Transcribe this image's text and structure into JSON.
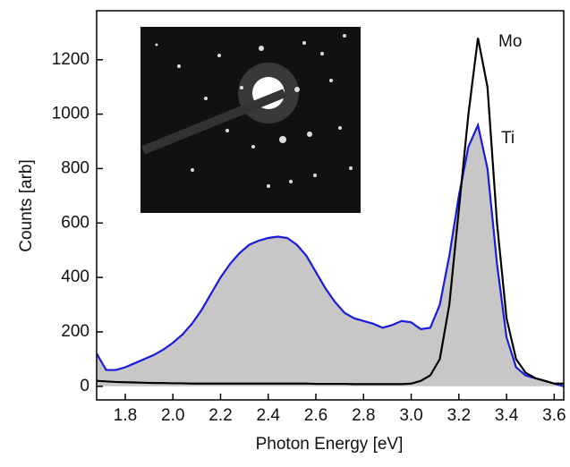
{
  "chart_data": {
    "type": "line",
    "xlabel": "Photon Energy [eV]",
    "ylabel": "Counts [arb]",
    "x": [
      1.68,
      1.72,
      1.76,
      1.8,
      1.84,
      1.88,
      1.92,
      1.96,
      2.0,
      2.04,
      2.08,
      2.12,
      2.16,
      2.2,
      2.24,
      2.28,
      2.32,
      2.36,
      2.4,
      2.44,
      2.48,
      2.52,
      2.56,
      2.6,
      2.64,
      2.68,
      2.72,
      2.76,
      2.8,
      2.84,
      2.88,
      2.92,
      2.96,
      3.0,
      3.04,
      3.08,
      3.12,
      3.16,
      3.2,
      3.24,
      3.28,
      3.32,
      3.36,
      3.4,
      3.44,
      3.48,
      3.52,
      3.56,
      3.6,
      3.64
    ],
    "series": [
      {
        "name": "Ti",
        "color": "#1a1adc",
        "fill": "#c8c6c6",
        "values": [
          120,
          60,
          60,
          70,
          85,
          100,
          115,
          135,
          160,
          190,
          230,
          280,
          340,
          400,
          450,
          490,
          520,
          535,
          545,
          550,
          545,
          520,
          480,
          420,
          360,
          310,
          270,
          250,
          240,
          230,
          215,
          225,
          240,
          235,
          210,
          215,
          300,
          480,
          700,
          880,
          960,
          800,
          450,
          180,
          70,
          40,
          30,
          20,
          10,
          0
        ]
      },
      {
        "name": "Mo",
        "color": "#000000",
        "values": [
          20,
          18,
          16,
          15,
          14,
          13,
          12,
          12,
          11,
          11,
          10,
          10,
          10,
          10,
          10,
          10,
          10,
          10,
          10,
          10,
          10,
          10,
          10,
          9,
          9,
          9,
          9,
          8,
          8,
          8,
          8,
          8,
          8,
          10,
          20,
          40,
          100,
          300,
          650,
          1000,
          1280,
          1100,
          600,
          250,
          100,
          50,
          30,
          20,
          10,
          10
        ]
      }
    ],
    "xlim": [
      1.68,
      3.64
    ],
    "xticks": [
      1.8,
      {
        "value": 2,
        "label": "2.0"
      },
      2.2,
      2.4,
      2.6,
      2.8,
      {
        "value": 3,
        "label": "3.0"
      },
      3.2,
      3.4,
      3.6
    ],
    "ylim": [
      -50,
      1380
    ],
    "yticks": [
      0,
      200,
      400,
      600,
      800,
      1000,
      1200
    ]
  }
}
